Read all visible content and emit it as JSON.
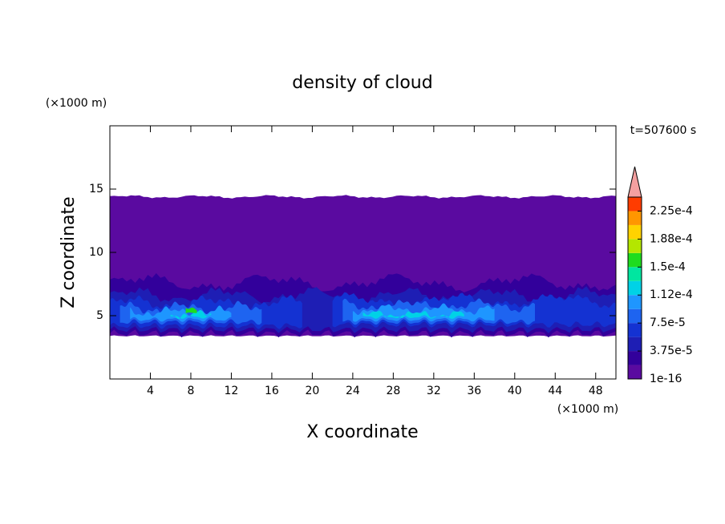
{
  "chart_data": {
    "type": "contour",
    "title": "density of cloud",
    "x_label": "X coordinate",
    "y_label": "Z coordinate",
    "x_unit": "(×1000 m)",
    "y_unit": "(×1000 m)",
    "annotation": "t=507600 s",
    "xlim": [
      0,
      50
    ],
    "ylim": [
      0,
      20
    ],
    "xticks": [
      4,
      8,
      12,
      16,
      20,
      24,
      28,
      32,
      36,
      40,
      44,
      48
    ],
    "yticks": [
      5,
      10,
      15
    ],
    "colorbar": {
      "levels": [
        1e-16,
        1.875e-05,
        3.75e-05,
        5.625e-05,
        7.5e-05,
        9.375e-05,
        0.0001125,
        0.00013125,
        0.00015,
        0.00016875,
        0.0001875,
        0.00020625,
        0.000225,
        0.00024375
      ],
      "colors": [
        "#5a0aa0",
        "#32009b",
        "#1e1eb4",
        "#1432d2",
        "#1e64f0",
        "#1e96ff",
        "#00d2e6",
        "#00e6a0",
        "#1edc1e",
        "#b4e600",
        "#ffd200",
        "#ff9600",
        "#ff3c00"
      ],
      "extend_color": "#f4a0a0",
      "ticks": [
        1e-16,
        {
          "value": 3.75e-05,
          "label": "3.75e-5"
        },
        {
          "value": 7.5e-05,
          "label": "7.5e-5"
        },
        {
          "value": 0.0001125,
          "label": "1.12e-4"
        },
        {
          "value": 0.00015,
          "label": "1.5e-4"
        },
        {
          "value": 0.0001875,
          "label": "1.88e-4"
        },
        {
          "value": 0.000225,
          "label": "2.25e-4"
        }
      ]
    }
  }
}
